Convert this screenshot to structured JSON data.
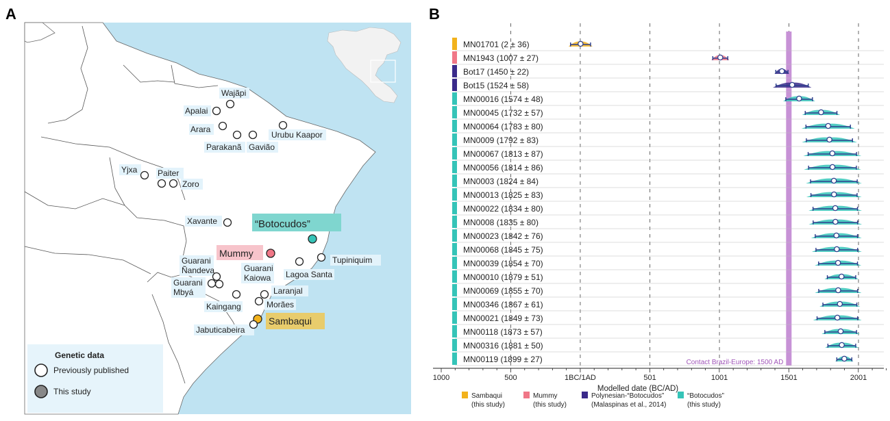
{
  "panels": {
    "a_label": "A",
    "b_label": "B"
  },
  "map": {
    "land_color": "#ffffff",
    "sea_color": "#bfe3f2",
    "border_color": "#555555",
    "label_bg": "#e3f3fb",
    "sites": [
      {
        "id": "wajapi",
        "label": "Wajãpi",
        "kind": "published"
      },
      {
        "id": "apalai",
        "label": "Apalai",
        "kind": "published"
      },
      {
        "id": "arara",
        "label": "Arara",
        "kind": "published"
      },
      {
        "id": "parakana",
        "label": "Parakanã",
        "kind": "published"
      },
      {
        "id": "gaviao",
        "label": "Gavião",
        "kind": "published"
      },
      {
        "id": "urubu",
        "label": "Urubu Kaapor",
        "kind": "published"
      },
      {
        "id": "yjxa",
        "label": "Yjxa",
        "kind": "published"
      },
      {
        "id": "paiter",
        "label": "Paiter",
        "kind": "published"
      },
      {
        "id": "zoro",
        "label": "Zoro",
        "kind": "published"
      },
      {
        "id": "xavante",
        "label": "Xavante",
        "kind": "published"
      },
      {
        "id": "botocudos",
        "label": "“Botocudos”",
        "kind": "botocudos"
      },
      {
        "id": "mummy",
        "label": "Mummy",
        "kind": "mummy"
      },
      {
        "id": "tupiniquim",
        "label": "Tupiniquim",
        "kind": "published"
      },
      {
        "id": "lagoa",
        "label": "Lagoa Santa",
        "kind": "published"
      },
      {
        "id": "gnandeva",
        "label": "Guarani Ñandeva",
        "kind": "published"
      },
      {
        "id": "gkaiowa",
        "label": "Guarani Kaiowa",
        "kind": "published"
      },
      {
        "id": "gmbya",
        "label": "Guarani Mbyá",
        "kind": "published"
      },
      {
        "id": "kaingang",
        "label": "Kaingang",
        "kind": "published"
      },
      {
        "id": "laranjal",
        "label": "Laranjal",
        "kind": "published"
      },
      {
        "id": "moraes",
        "label": "Morães",
        "kind": "published"
      },
      {
        "id": "sambaqui",
        "label": "Sambaqui",
        "kind": "sambaqui"
      },
      {
        "id": "jabuticabeira",
        "label": "Jabuticabeira",
        "kind": "published"
      }
    ],
    "legend": {
      "title": "Genetic data",
      "items": [
        {
          "label": "Previously published",
          "fill": "#ffffff"
        },
        {
          "label": "This study",
          "fill": "#888888"
        }
      ]
    }
  },
  "chart_data": {
    "type": "dot-interval",
    "xlabel": "Modelled date (BC/AD)",
    "ticks": [
      {
        "value": -1000,
        "label": "1000"
      },
      {
        "value": -500,
        "label": "500"
      },
      {
        "value": 0,
        "label": "1BC/1AD"
      },
      {
        "value": 501,
        "label": "501"
      },
      {
        "value": 1001,
        "label": "1001"
      },
      {
        "value": 1501,
        "label": "1501"
      },
      {
        "value": 2001,
        "label": "2001"
      }
    ],
    "xlim": [
      -1000,
      2200
    ],
    "grid_dashed": true,
    "contact_line": {
      "value": 1500,
      "label": "Contact Brazil-Europe: 1500 AD",
      "color": "#c792d6"
    },
    "groups": [
      {
        "name": "Sambaqui",
        "sub": "(this study)",
        "color": "#f2b21c"
      },
      {
        "name": "Mummy",
        "sub": "(this study)",
        "color": "#f07787"
      },
      {
        "name": "Polynesian-“Botocudos”",
        "sub": "(Malaspinas et al., 2014)",
        "color": "#3a2a8a"
      },
      {
        "name": "“Botocudos”",
        "sub": "(this study)",
        "color": "#35c4b8"
      }
    ],
    "samples": [
      {
        "label": "MN01701 (2 ± 36)",
        "group": 0,
        "mean": 2,
        "sd": 36
      },
      {
        "label": "MN1943 (1007 ± 27)",
        "group": 1,
        "mean": 1007,
        "sd": 27
      },
      {
        "label": "Bot17 (1450 ± 22)",
        "group": 2,
        "mean": 1450,
        "sd": 22
      },
      {
        "label": "Bot15 (1524 ± 58)",
        "group": 2,
        "mean": 1524,
        "sd": 58
      },
      {
        "label": "MN00016 (1574 ± 48)",
        "group": 3,
        "mean": 1574,
        "sd": 48
      },
      {
        "label": "MN00045 (1732 ± 57)",
        "group": 3,
        "mean": 1732,
        "sd": 57
      },
      {
        "label": "MN00064 (1783 ± 80)",
        "group": 3,
        "mean": 1783,
        "sd": 80
      },
      {
        "label": "MN0009 (1792 ± 83)",
        "group": 3,
        "mean": 1792,
        "sd": 83
      },
      {
        "label": "MN00067 (1813 ± 87)",
        "group": 3,
        "mean": 1813,
        "sd": 87
      },
      {
        "label": "MN00056 (1814 ± 86)",
        "group": 3,
        "mean": 1814,
        "sd": 86
      },
      {
        "label": "MN0003 (1824 ± 84)",
        "group": 3,
        "mean": 1824,
        "sd": 84
      },
      {
        "label": "MN00013 (1825 ± 83)",
        "group": 3,
        "mean": 1825,
        "sd": 83
      },
      {
        "label": "MN00022 (1834 ± 80)",
        "group": 3,
        "mean": 1834,
        "sd": 80
      },
      {
        "label": "MN0008 (1835 ± 80)",
        "group": 3,
        "mean": 1835,
        "sd": 80
      },
      {
        "label": "MN00023 (1842 ± 76)",
        "group": 3,
        "mean": 1842,
        "sd": 76
      },
      {
        "label": "MN00068 (1845 ± 75)",
        "group": 3,
        "mean": 1845,
        "sd": 75
      },
      {
        "label": "MN00039 (1854 ± 70)",
        "group": 3,
        "mean": 1854,
        "sd": 70
      },
      {
        "label": "MN00010 (1879 ± 51)",
        "group": 3,
        "mean": 1879,
        "sd": 51
      },
      {
        "label": "MN00069 (1855 ± 70)",
        "group": 3,
        "mean": 1855,
        "sd": 70
      },
      {
        "label": "MN00346 (1867 ± 61)",
        "group": 3,
        "mean": 1867,
        "sd": 61
      },
      {
        "label": "MN00021 (1849 ± 73)",
        "group": 3,
        "mean": 1849,
        "sd": 73
      },
      {
        "label": "MN00118 (1873 ± 57)",
        "group": 3,
        "mean": 1873,
        "sd": 57
      },
      {
        "label": "MN00316 (1881 ± 50)",
        "group": 3,
        "mean": 1881,
        "sd": 50
      },
      {
        "label": "MN00119 (1899 ± 27)",
        "group": 3,
        "mean": 1899,
        "sd": 27
      }
    ]
  }
}
